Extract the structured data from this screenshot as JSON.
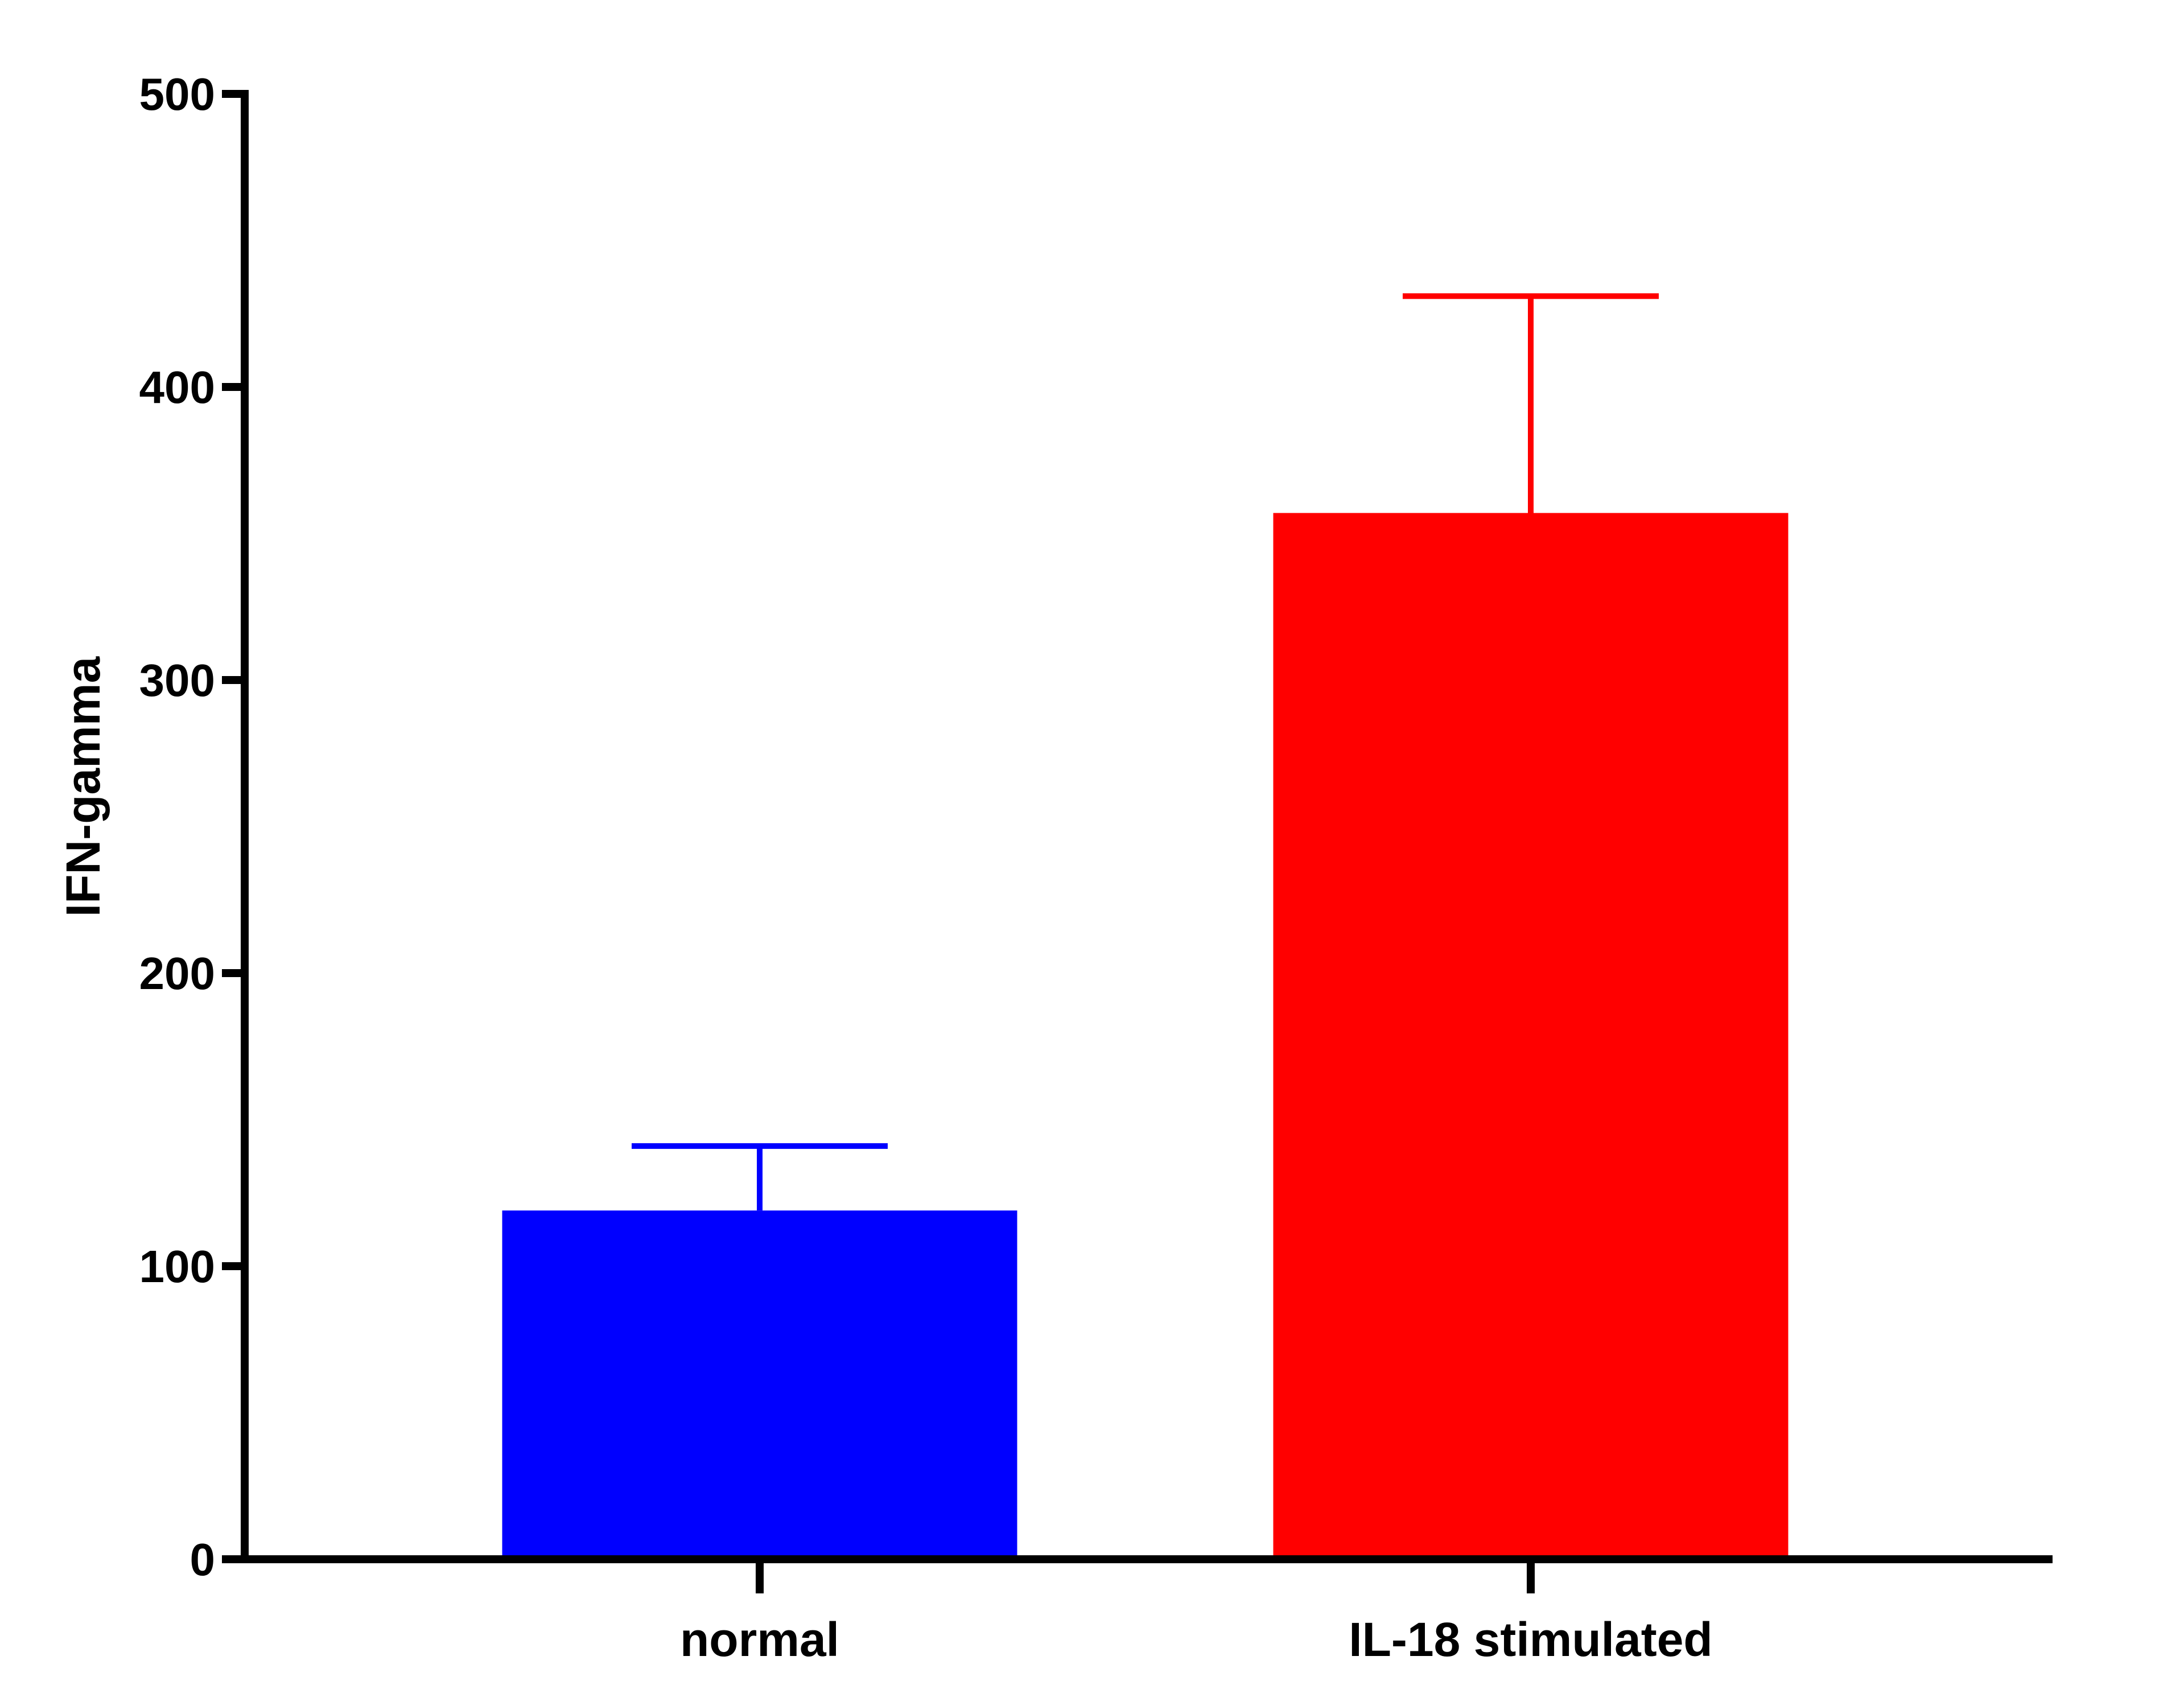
{
  "chart_data": {
    "type": "bar",
    "title": "",
    "xlabel": "",
    "ylabel": "IFN-gamma",
    "categories": [
      "normal",
      "IL-18 stimulated"
    ],
    "values": [
      119,
      357
    ],
    "error_upper": [
      141,
      431
    ],
    "ylim": [
      0,
      500
    ],
    "yticks": [
      0,
      100,
      200,
      300,
      400,
      500
    ],
    "ytick_labels": [
      "0",
      "100",
      "200",
      "300",
      "400",
      "500"
    ],
    "grid": false,
    "legend": "none",
    "colors": [
      "#0000ff",
      "#ff0000"
    ]
  }
}
